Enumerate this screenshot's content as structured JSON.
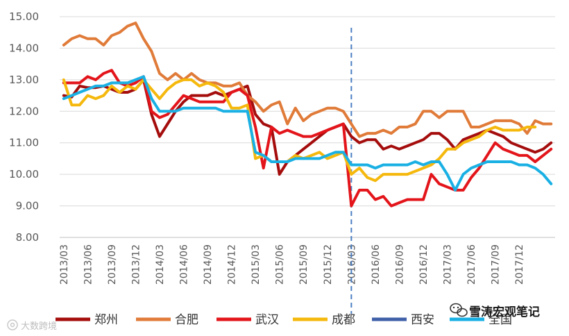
{
  "chart_data": {
    "type": "line",
    "title": "",
    "xlabel": "",
    "ylabel": "",
    "ylim": [
      8.0,
      15.0
    ],
    "yticks": [
      "8.00",
      "9.00",
      "10.00",
      "11.00",
      "12.00",
      "13.00",
      "14.00",
      "15.00"
    ],
    "xtick_labels": [
      "2013/03",
      "2013/06",
      "2013/09",
      "2013/12",
      "2014/03",
      "2014/06",
      "2014/09",
      "2014/12",
      "2015/03",
      "2015/06",
      "2015/09",
      "2015/12",
      "2016/03",
      "2016/06",
      "2016/09",
      "2016/12",
      "2017/03",
      "2017/06",
      "2017/09",
      "2017/12"
    ],
    "start_month": "2013/03",
    "vline_at": "2016/03",
    "series": [
      {
        "name": "郑州",
        "color": "#a50d0d",
        "values": [
          12.5,
          12.45,
          12.8,
          12.75,
          12.75,
          12.8,
          12.7,
          12.6,
          12.6,
          12.7,
          13.0,
          11.9,
          11.2,
          11.6,
          12.0,
          12.3,
          12.5,
          12.5,
          12.5,
          12.6,
          12.5,
          12.6,
          12.7,
          12.8,
          11.9,
          11.6,
          11.5,
          10.0,
          10.4,
          10.6,
          10.8,
          11.0,
          11.2,
          11.4,
          11.5,
          11.6,
          11.2,
          11.0,
          11.1,
          11.1,
          10.8,
          10.9,
          10.8,
          10.9,
          11.0,
          11.1,
          11.3,
          11.3,
          11.1,
          10.8,
          11.1,
          11.2,
          11.3,
          11.4,
          11.3,
          11.2,
          11.0,
          10.9,
          10.8,
          10.7,
          10.8,
          11.0
        ]
      },
      {
        "name": "合肥",
        "color": "#e07b39",
        "values": [
          14.1,
          14.3,
          14.4,
          14.3,
          14.3,
          14.1,
          14.4,
          14.5,
          14.7,
          14.8,
          14.3,
          13.9,
          13.2,
          13.0,
          13.2,
          13.0,
          13.2,
          13.0,
          12.9,
          12.9,
          12.8,
          12.8,
          12.9,
          12.5,
          12.3,
          12.0,
          12.2,
          12.3,
          11.6,
          12.1,
          11.7,
          11.9,
          12.0,
          12.1,
          12.1,
          12.0,
          11.6,
          11.2,
          11.3,
          11.3,
          11.4,
          11.3,
          11.5,
          11.5,
          11.6,
          12.0,
          12.0,
          11.8,
          12.0,
          12.0,
          12.0,
          11.5,
          11.5,
          11.6,
          11.7,
          11.7,
          11.7,
          11.6,
          11.3,
          11.7,
          11.6,
          11.6
        ]
      },
      {
        "name": "武汉",
        "color": "#e3151b",
        "values": [
          12.9,
          12.9,
          12.9,
          13.1,
          13.0,
          13.2,
          13.3,
          12.9,
          12.8,
          12.9,
          13.1,
          12.0,
          11.8,
          11.9,
          12.2,
          12.5,
          12.4,
          12.3,
          12.3,
          12.3,
          12.3,
          12.6,
          12.7,
          12.5,
          11.5,
          10.2,
          11.5,
          11.3,
          11.4,
          11.3,
          11.2,
          11.2,
          11.3,
          11.4,
          11.5,
          11.6,
          9.0,
          9.5,
          9.5,
          9.2,
          9.3,
          9.0,
          9.1,
          9.2,
          9.2,
          9.2,
          10.0,
          9.7,
          9.6,
          9.5,
          9.5,
          9.9,
          10.2,
          10.6,
          11.0,
          10.8,
          10.7,
          10.6,
          10.6,
          10.4,
          10.6,
          10.8
        ]
      },
      {
        "name": "成都",
        "color": "#f5b80c",
        "values": [
          13.0,
          12.2,
          12.2,
          12.5,
          12.4,
          12.5,
          12.8,
          12.6,
          12.8,
          12.7,
          13.0,
          12.7,
          12.4,
          12.7,
          12.9,
          13.0,
          13.0,
          12.8,
          12.9,
          12.8,
          12.6,
          12.1,
          12.1,
          12.2,
          10.5,
          10.6,
          10.4,
          10.4,
          10.4,
          10.6,
          10.5,
          10.6,
          10.7,
          10.5,
          10.6,
          10.7,
          10.0,
          10.2,
          9.9,
          9.8,
          10.0,
          10.0,
          10.0,
          10.0,
          10.1,
          10.2,
          10.3,
          10.5,
          10.8,
          10.8,
          11.0,
          11.1,
          11.2,
          11.4,
          11.5,
          11.4,
          11.4,
          11.4,
          11.5,
          11.5
        ]
      },
      {
        "name": "西安",
        "color": "#3f5fa8",
        "values": []
      },
      {
        "name": "全国",
        "color": "#1ab0e4",
        "values": [
          12.4,
          12.5,
          12.6,
          12.7,
          12.8,
          12.8,
          12.9,
          12.9,
          12.9,
          13.0,
          13.1,
          12.4,
          12.0,
          12.0,
          12.0,
          12.1,
          12.1,
          12.1,
          12.1,
          12.1,
          12.0,
          12.0,
          12.0,
          12.0,
          10.7,
          10.6,
          10.4,
          10.4,
          10.4,
          10.5,
          10.5,
          10.5,
          10.5,
          10.6,
          10.7,
          10.7,
          10.3,
          10.3,
          10.3,
          10.2,
          10.3,
          10.3,
          10.3,
          10.3,
          10.4,
          10.3,
          10.4,
          10.4,
          10.0,
          9.5,
          10.0,
          10.2,
          10.3,
          10.4,
          10.4,
          10.4,
          10.4,
          10.3,
          10.3,
          10.2,
          10.0,
          9.7
        ]
      }
    ]
  },
  "watermark": {
    "brand": "雪涛宏观笔记",
    "source": "大数跨境"
  },
  "icons": [
    "wechat-icon",
    "weibo-icon"
  ]
}
